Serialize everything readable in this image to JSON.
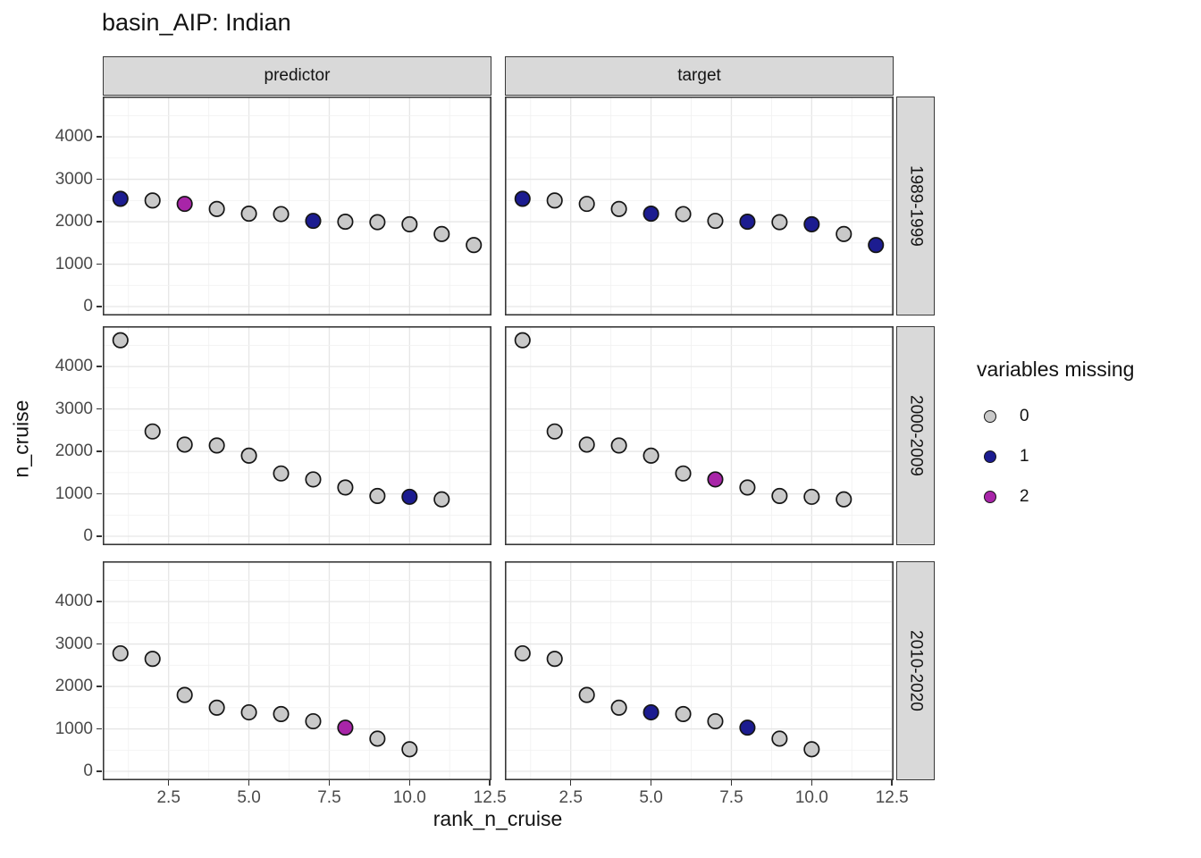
{
  "title": "basin_AIP: Indian",
  "axes": {
    "x_label": "rank_n_cruise",
    "y_label": "n_cruise"
  },
  "legend": {
    "title": "variables missing",
    "entries": [
      {
        "label": "0",
        "color": "#c9c9c9"
      },
      {
        "label": "1",
        "color": "#1c1c90"
      },
      {
        "label": "2",
        "color": "#a825a8"
      }
    ]
  },
  "style_colors": {
    "strip_fill": "#d9d9d9",
    "panel_border": "#383838",
    "grid_major": "#e6e6e6",
    "grid_minor": "#f2f2f2",
    "axis_text": "#4a4a4a",
    "point_outline": "#151515"
  },
  "chart_data": {
    "type": "scatter",
    "title": "basin_AIP: Indian",
    "xlabel": "rank_n_cruise",
    "ylabel": "n_cruise",
    "legend_title": "variables missing",
    "legend_position": "right",
    "facet_columns": [
      "predictor",
      "target"
    ],
    "facet_rows": [
      "1989-1999",
      "2000-2009",
      "2010-2020"
    ],
    "x_ticks": [
      2.5,
      5.0,
      7.5,
      10.0,
      12.5
    ],
    "x_tick_labels": [
      "2.5",
      "5.0",
      "7.5",
      "10.0",
      "12.5"
    ],
    "y_ticks": [
      0,
      1000,
      2000,
      3000,
      4000
    ],
    "y_tick_labels": [
      "0",
      "1000",
      "2000",
      "3000",
      "4000"
    ],
    "xlim": [
      0.45,
      12.55
    ],
    "ylim": [
      -210,
      4950
    ],
    "x_minor_step": 1.25,
    "y_minor_step": 500,
    "grid": "major+minor",
    "rows": [
      {
        "period": "1989-1999",
        "x": [
          1,
          2,
          3,
          4,
          5,
          6,
          7,
          8,
          9,
          10,
          11,
          12
        ],
        "n_cruise": [
          2540,
          2500,
          2420,
          2300,
          2190,
          2180,
          2020,
          2000,
          1990,
          1940,
          1710,
          1450
        ],
        "missing_predictor": [
          1,
          0,
          2,
          0,
          0,
          0,
          1,
          0,
          0,
          0,
          0,
          0
        ],
        "missing_target": [
          1,
          0,
          0,
          0,
          1,
          0,
          0,
          1,
          0,
          1,
          0,
          1
        ]
      },
      {
        "period": "2000-2009",
        "x": [
          1,
          2,
          3,
          4,
          5,
          6,
          7,
          8,
          9,
          10,
          11
        ],
        "n_cruise": [
          4620,
          2470,
          2160,
          2140,
          1900,
          1480,
          1340,
          1150,
          950,
          930,
          870
        ],
        "missing_predictor": [
          0,
          0,
          0,
          0,
          0,
          0,
          0,
          0,
          0,
          1,
          0
        ],
        "missing_target": [
          0,
          0,
          0,
          0,
          0,
          0,
          2,
          0,
          0,
          0,
          0
        ]
      },
      {
        "period": "2010-2020",
        "x": [
          1,
          2,
          3,
          4,
          5,
          6,
          7,
          8,
          9,
          10
        ],
        "n_cruise": [
          2780,
          2650,
          1800,
          1500,
          1390,
          1350,
          1180,
          1030,
          770,
          520
        ],
        "missing_predictor": [
          0,
          0,
          0,
          0,
          0,
          0,
          0,
          2,
          0,
          0
        ],
        "missing_target": [
          0,
          0,
          0,
          0,
          1,
          0,
          0,
          1,
          0,
          0
        ]
      }
    ]
  }
}
